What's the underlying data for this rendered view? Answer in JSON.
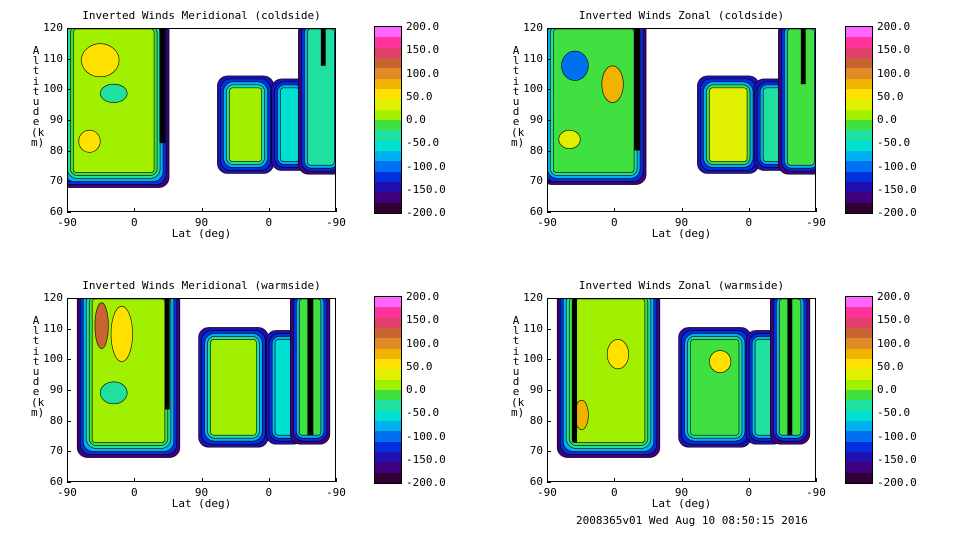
{
  "footer": "2008365v01 Wed Aug 10 08:50:15 2016",
  "colorbar": {
    "labels": [
      "200.0",
      "150.0",
      "100.0",
      "50.0",
      "0.0",
      "-50.0",
      "-100.0",
      "-150.0",
      "-200.0"
    ],
    "colors": [
      "#ff66ff",
      "#ff3399",
      "#e0406a",
      "#c86432",
      "#e08a28",
      "#f0b400",
      "#ffe000",
      "#e0f000",
      "#a0f000",
      "#40e040",
      "#20e0a0",
      "#00e0d0",
      "#00b0f0",
      "#0070f0",
      "#0030e0",
      "#2010b0",
      "#400080",
      "#300030"
    ]
  },
  "chart_data": [
    {
      "type": "contour",
      "title": "Inverted Winds Meridional (coldside)",
      "xlabel": "Lat (deg)",
      "ylabel": "Altitude (km)",
      "xticks": [
        "-90",
        "0",
        "90",
        "0",
        "-90"
      ],
      "yticks": [
        "120",
        "110",
        "100",
        "90",
        "80",
        "70",
        "60"
      ],
      "ylim": [
        60,
        120
      ],
      "zlim": [
        -200,
        200
      ],
      "colorbar_ticks": [
        200,
        150,
        100,
        50,
        0,
        -50,
        -100,
        -150,
        -200
      ]
    },
    {
      "type": "contour",
      "title": "Inverted Winds Zonal (coldside)",
      "xlabel": "Lat (deg)",
      "ylabel": "Altitude (km)",
      "xticks": [
        "-90",
        "0",
        "90",
        "0",
        "-90"
      ],
      "yticks": [
        "120",
        "110",
        "100",
        "90",
        "80",
        "70",
        "60"
      ],
      "ylim": [
        60,
        120
      ],
      "zlim": [
        -200,
        200
      ],
      "colorbar_ticks": [
        200,
        150,
        100,
        50,
        0,
        -50,
        -100,
        -150,
        -200
      ]
    },
    {
      "type": "contour",
      "title": "Inverted Winds Meridional (warmside)",
      "xlabel": "Lat (deg)",
      "ylabel": "Altitude (km)",
      "xticks": [
        "-90",
        "0",
        "90",
        "0",
        "-90"
      ],
      "yticks": [
        "120",
        "110",
        "100",
        "90",
        "80",
        "70",
        "60"
      ],
      "ylim": [
        60,
        120
      ],
      "zlim": [
        -200,
        200
      ],
      "colorbar_ticks": [
        200,
        150,
        100,
        50,
        0,
        -50,
        -100,
        -150,
        -200
      ]
    },
    {
      "type": "contour",
      "title": "Inverted Winds Zonal (warmside)",
      "xlabel": "Lat (deg)",
      "ylabel": "Altitude (km)",
      "xticks": [
        "-90",
        "0",
        "90",
        "0",
        "-90"
      ],
      "yticks": [
        "120",
        "110",
        "100",
        "90",
        "80",
        "70",
        "60"
      ],
      "ylim": [
        60,
        120
      ],
      "zlim": [
        -200,
        200
      ],
      "colorbar_ticks": [
        200,
        150,
        100,
        50,
        0,
        -50,
        -100,
        -150,
        -200
      ]
    }
  ]
}
